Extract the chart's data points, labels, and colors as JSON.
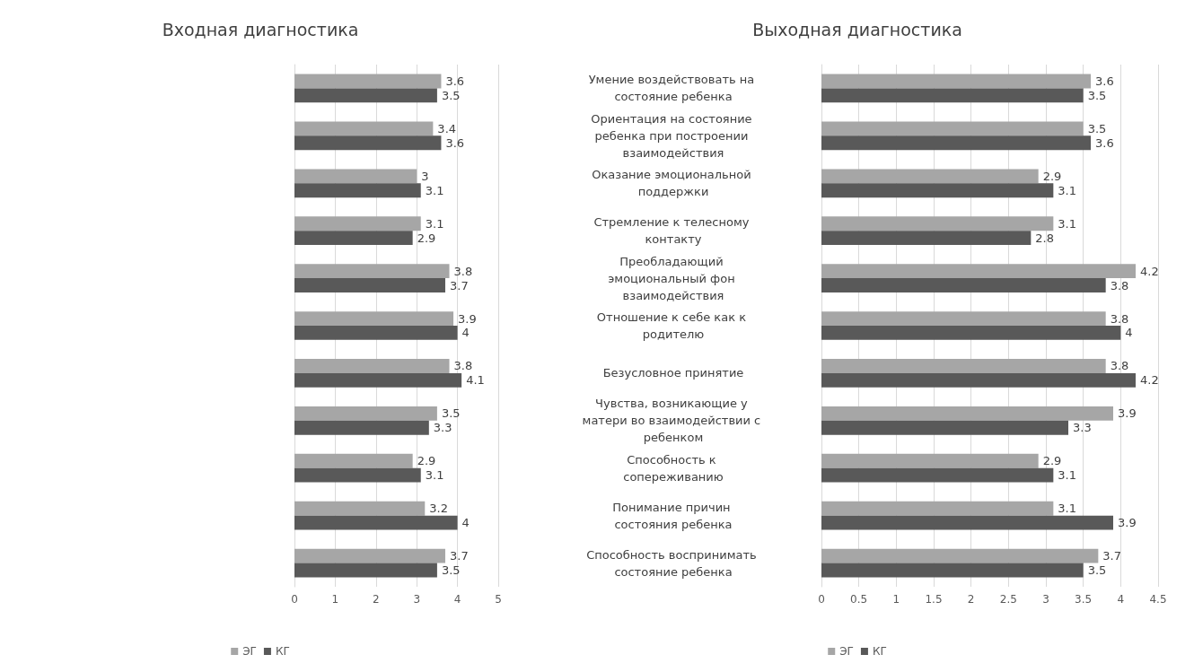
{
  "chart_data": [
    {
      "type": "bar",
      "orientation": "horizontal",
      "title": "Входная диагностика",
      "categories": [
        null,
        null,
        null,
        null,
        null,
        null,
        null,
        null,
        null,
        null,
        null
      ],
      "series": [
        {
          "name": "ЭГ",
          "color": "#a6a6a6",
          "values": [
            3.6,
            3.4,
            3,
            3.1,
            3.8,
            3.9,
            3.8,
            3.5,
            2.9,
            3.2,
            3.7
          ]
        },
        {
          "name": "КГ",
          "color": "#595959",
          "values": [
            3.5,
            3.6,
            3.1,
            2.9,
            3.7,
            4,
            4.1,
            3.3,
            3.1,
            4,
            3.5
          ]
        }
      ],
      "xlim": [
        0,
        5
      ],
      "xticks": [
        0,
        1,
        2,
        3,
        4,
        5
      ],
      "grid": "x",
      "legend": "bottom",
      "data_labels": true
    },
    {
      "type": "bar",
      "orientation": "horizontal",
      "title": "Выходная диагностика",
      "categories": [
        "Умение воздействовать на состояние ребенка",
        "Ориентация на состояние ребенка при построении взаимодействия",
        "Оказание эмоциональной поддержки",
        "Стремление к телесному контакту",
        "Преобладающий эмоциональный фон взаимодействия",
        "Отношение к себе как к родителю",
        "Безусловное принятие",
        "Чувства, возникающие у матери во взаимодействии с ребенком",
        "Способность к сопереживанию",
        "Понимание причин состояния ребенка",
        "Способность воспринимать состояние ребенка"
      ],
      "series": [
        {
          "name": "ЭГ",
          "color": "#a6a6a6",
          "values": [
            3.6,
            3.5,
            2.9,
            3.1,
            4.2,
            3.8,
            3.8,
            3.9,
            2.9,
            3.1,
            3.7
          ]
        },
        {
          "name": "КГ",
          "color": "#595959",
          "values": [
            3.5,
            3.6,
            3.1,
            2.8,
            3.8,
            4,
            4.2,
            3.3,
            3.1,
            3.9,
            3.5
          ]
        }
      ],
      "xlim": [
        0,
        4.5
      ],
      "xticks": [
        0,
        0.5,
        1,
        1.5,
        2,
        2.5,
        3,
        3.5,
        4,
        4.5
      ],
      "grid": "x",
      "legend": "bottom",
      "data_labels": true
    }
  ]
}
